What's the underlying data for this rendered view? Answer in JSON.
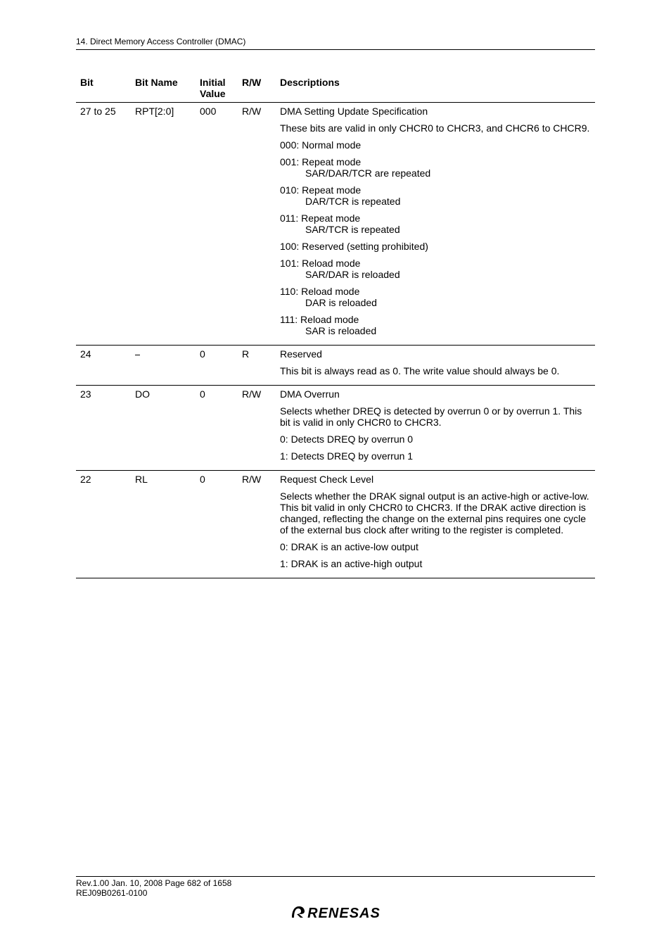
{
  "header": {
    "section_name": "14.   Direct Memory Access Controller (DMAC)"
  },
  "table": {
    "columns": {
      "bit": "Bit",
      "bit_name": "Bit Name",
      "initial_label_line1": "Initial",
      "initial_label_line2": "Value",
      "rw": "R/W",
      "desc": "Descriptions"
    },
    "rows": [
      {
        "bit": "27 to 25",
        "bit_name": "RPT[2:0]",
        "initial": "000",
        "rw": "R/W",
        "desc": [
          {
            "text": "DMA Setting Update Specification"
          },
          {
            "text": "These bits are valid in only CHCR0 to CHCR3, and CHCR6 to CHCR9."
          },
          {
            "text": "000: Normal mode"
          },
          {
            "text": "001: Repeat mode",
            "sub": "SAR/DAR/TCR are repeated"
          },
          {
            "text": "010: Repeat mode",
            "sub": "DAR/TCR is repeated"
          },
          {
            "text": "011: Repeat mode",
            "sub": "SAR/TCR is repeated"
          },
          {
            "text": "100: Reserved (setting prohibited)"
          },
          {
            "text": "101: Reload mode",
            "sub": "SAR/DAR is reloaded"
          },
          {
            "text": "110: Reload mode",
            "sub": "DAR is reloaded"
          },
          {
            "text": "111: Reload mode",
            "sub": "SAR is reloaded"
          }
        ]
      },
      {
        "bit": "24",
        "bit_name": "⎯",
        "initial": "0",
        "rw": "R",
        "desc": [
          {
            "text": "Reserved"
          },
          {
            "text": "This bit is always read as 0. The write value should always be 0."
          }
        ]
      },
      {
        "bit": "23",
        "bit_name": "DO",
        "initial": "0",
        "rw": "R/W",
        "desc": [
          {
            "text": "DMA Overrun"
          },
          {
            "text": "Selects whether DREQ is detected by overrun 0 or by overrun 1. This bit is valid in only CHCR0 to CHCR3."
          },
          {
            "text": "0: Detects DREQ by overrun 0"
          },
          {
            "text": "1: Detects DREQ by overrun 1"
          }
        ]
      },
      {
        "bit": "22",
        "bit_name": "RL",
        "initial": "0",
        "rw": "R/W",
        "desc": [
          {
            "text": "Request Check Level"
          },
          {
            "text": "Selects whether the DRAK signal output is an active-high or active-low. This bit valid in only CHCR0 to CHCR3. If the DRAK active direction is changed, reflecting the change on the external pins requires one cycle of the external bus clock after writing to the register is completed."
          },
          {
            "text": "0: DRAK is an active-low output"
          },
          {
            "text": "1: DRAK is an active-high output"
          }
        ]
      }
    ],
    "final_rule": true
  },
  "footer": {
    "rev": "Rev.1.00  Jan. 10, 2008  Page 682 of 1658",
    "code": "REJ09B0261-0100",
    "logo": "RENESAS"
  }
}
